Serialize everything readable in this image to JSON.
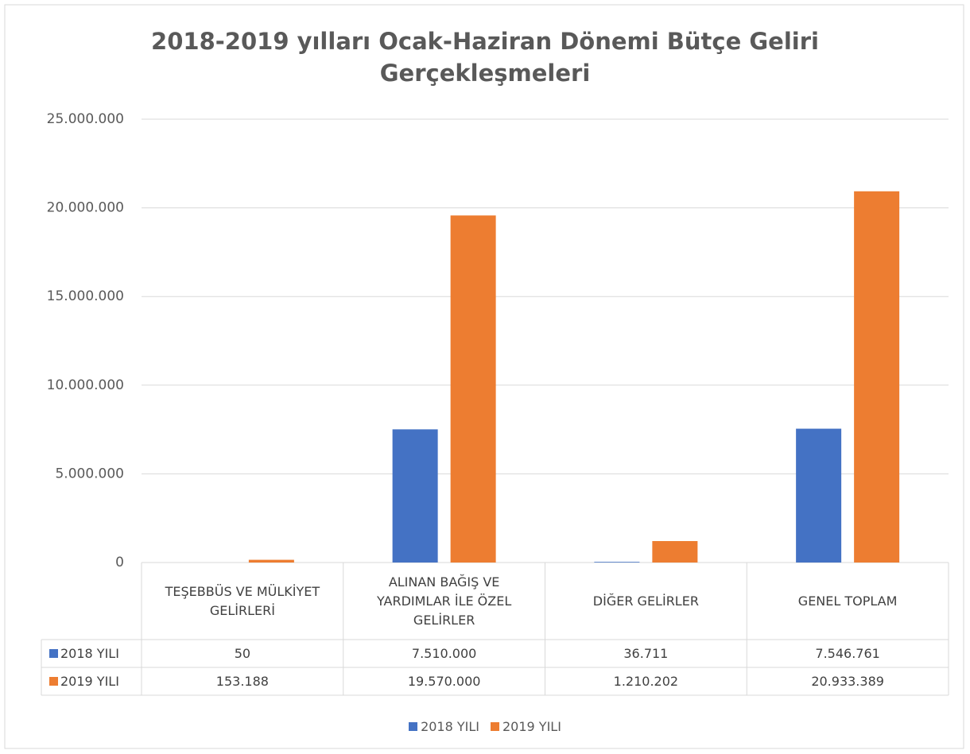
{
  "chart_data": {
    "type": "bar",
    "title": "2018-2019 yılları Ocak-Haziran Dönemi Bütçe Geliri Gerçekleşmeleri",
    "categories": [
      "TEŞEBBÜS VE MÜLKİYET GELİRLERİ",
      "ALINAN BAĞIŞ VE YARDIMLAR İLE ÖZEL GELİRLER",
      "DİĞER GELİRLER",
      "GENEL TOPLAM"
    ],
    "series": [
      {
        "name": "2018 YILI",
        "color": "#4472c4",
        "values": [
          50,
          7510000,
          36711,
          7546761
        ],
        "value_labels": [
          "50",
          "7.510.000",
          "36.711",
          "7.546.761"
        ]
      },
      {
        "name": "2019 YILI",
        "color": "#ed7d31",
        "values": [
          153188,
          19570000,
          1210202,
          20933389
        ],
        "value_labels": [
          "153.188",
          "19.570.000",
          "1.210.202",
          "20.933.389"
        ]
      }
    ],
    "ylim": [
      0,
      25000000
    ],
    "yticks": [
      {
        "value": 0,
        "label": "0"
      },
      {
        "value": 5000000,
        "label": "5.000.000"
      },
      {
        "value": 10000000,
        "label": "10.000.000"
      },
      {
        "value": 15000000,
        "label": "15.000.000"
      },
      {
        "value": 20000000,
        "label": "20.000.000"
      },
      {
        "value": 25000000,
        "label": "25.000.000"
      }
    ],
    "grid": true,
    "legend": "bottom"
  }
}
